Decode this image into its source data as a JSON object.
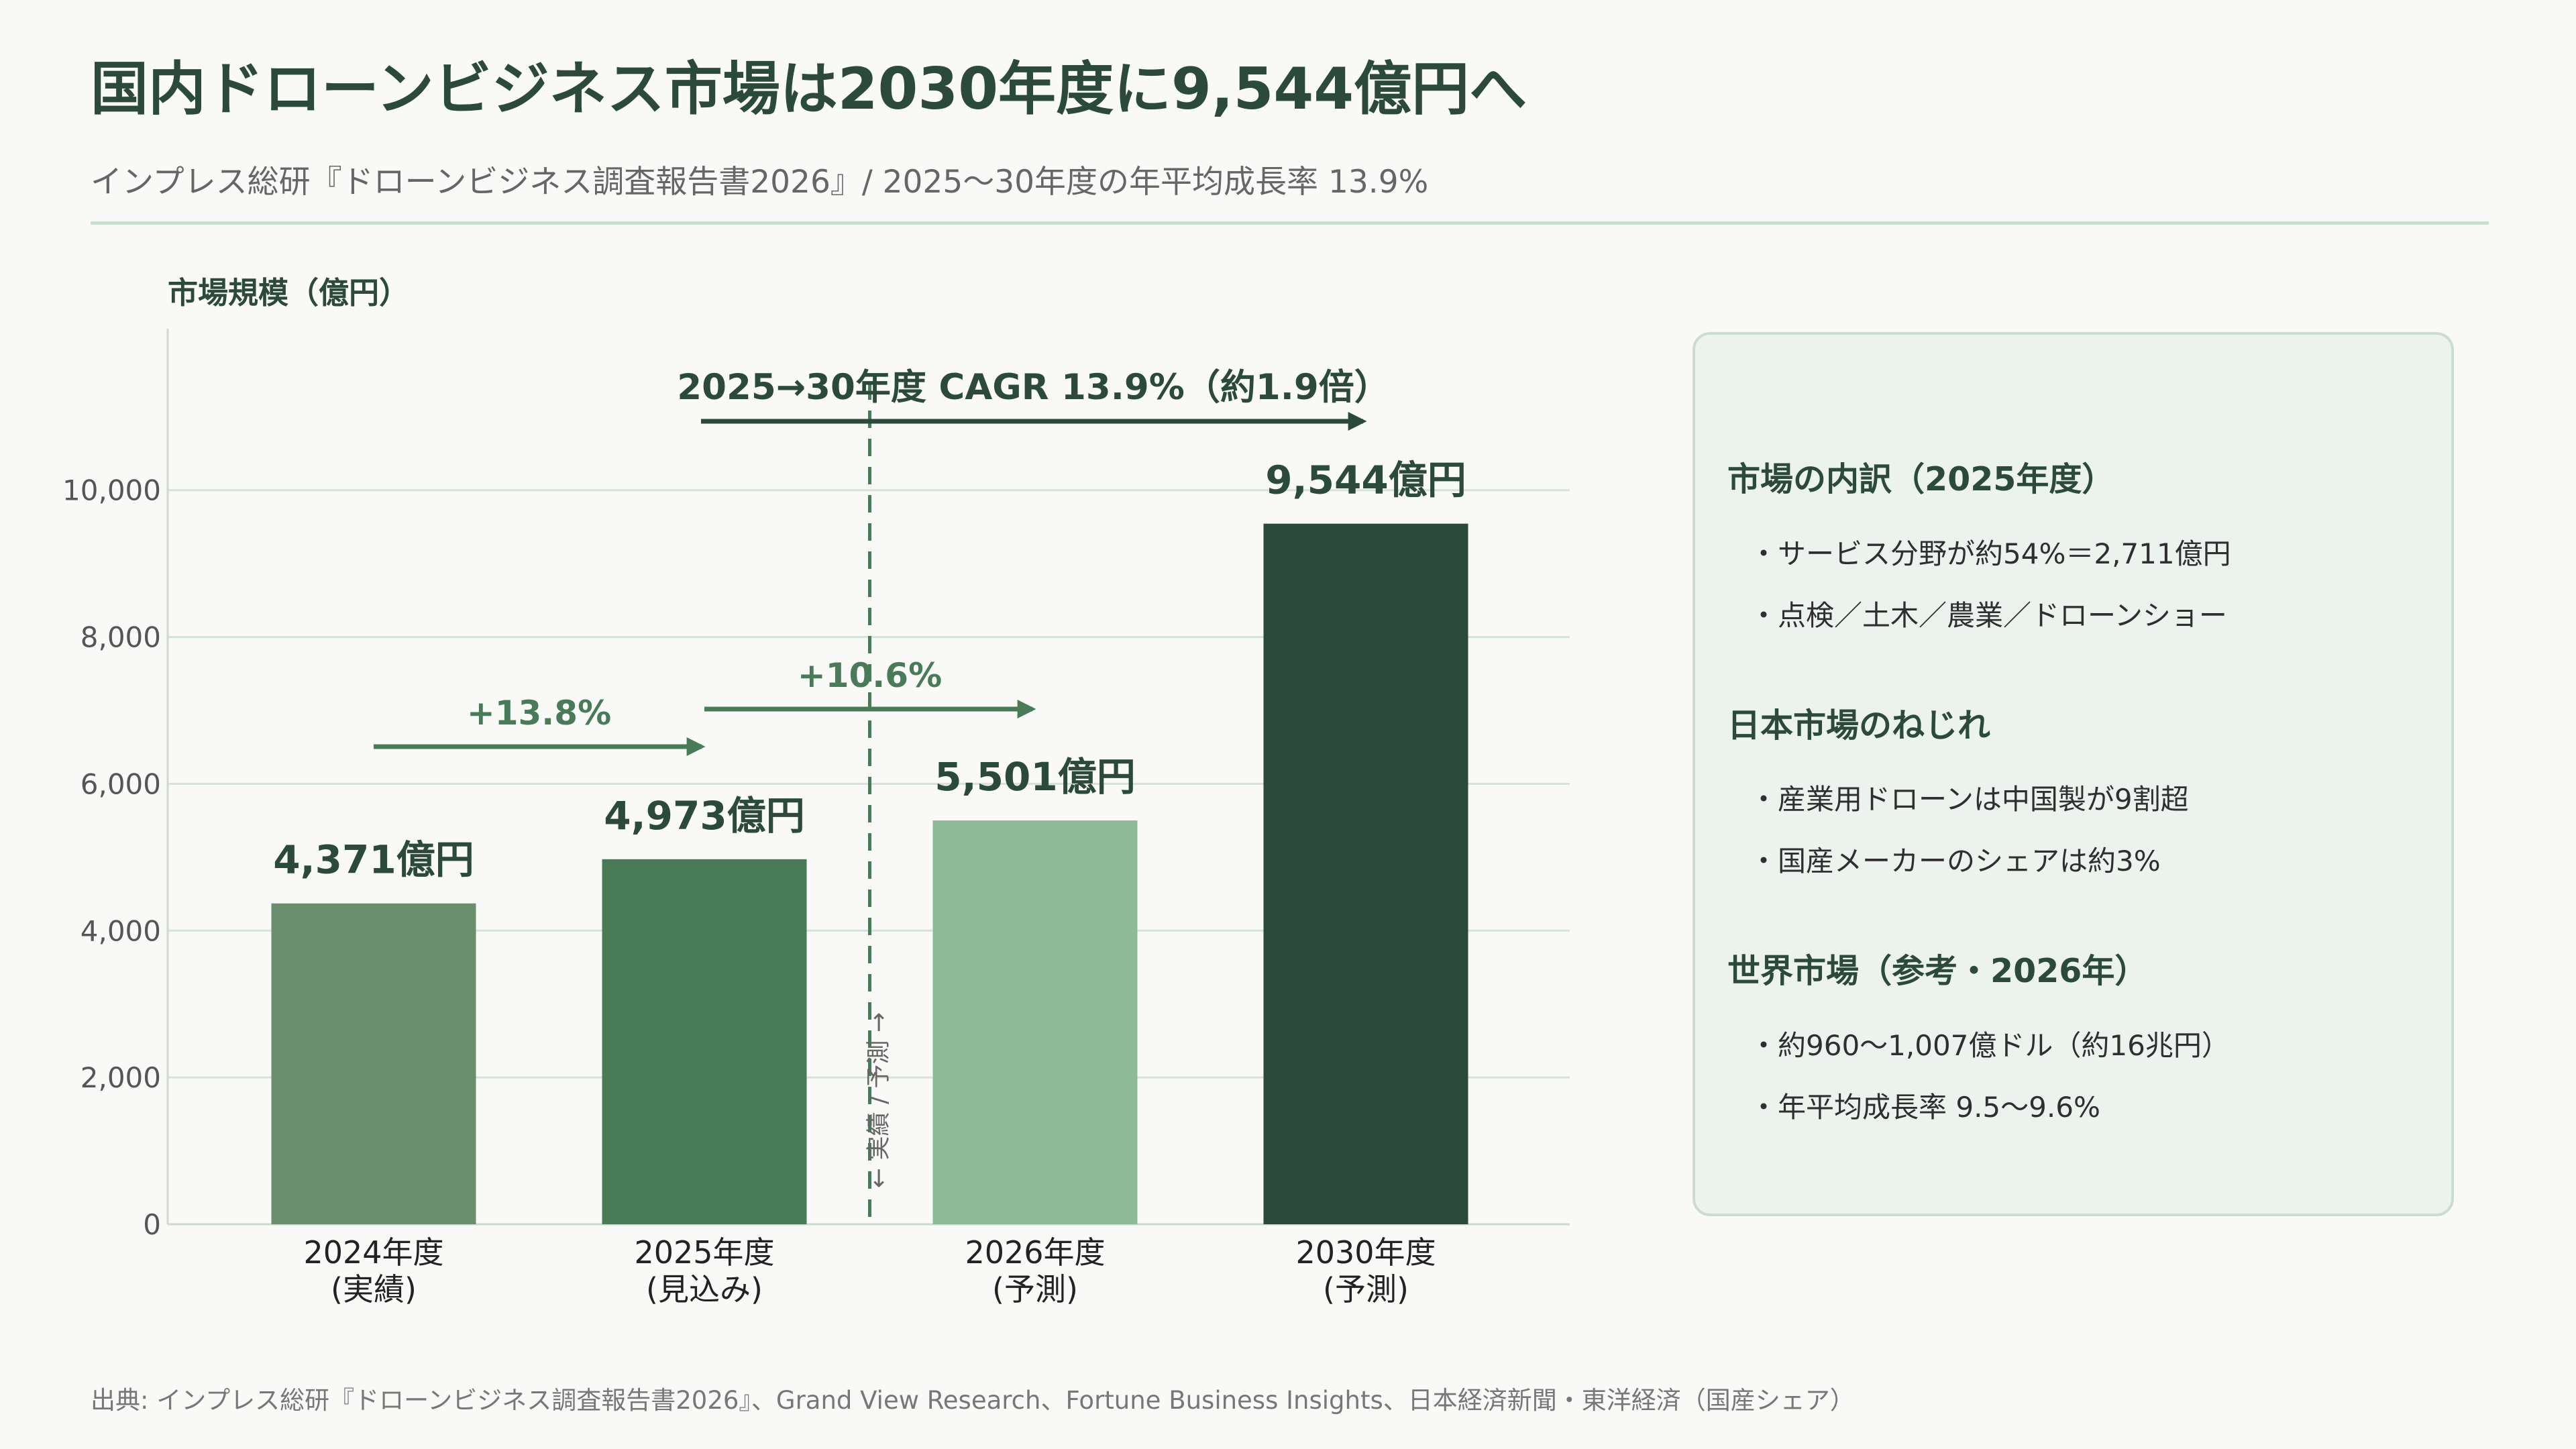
{
  "title": "国内ドローンビジネス市場は2030年度に9,544億円へ",
  "subtitle": "インプレス総研『ドローンビジネス調査報告書2026』/ 2025〜30年度の年平均成長率 13.9%",
  "chart_data": {
    "type": "bar",
    "ylabel": "市場規模（億円）",
    "categories": [
      [
        "2024年度",
        "(実績)"
      ],
      [
        "2025年度",
        "(見込み)"
      ],
      [
        "2026年度",
        "(予測)"
      ],
      [
        "2030年度",
        "(予測)"
      ]
    ],
    "values": [
      4371,
      4973,
      5501,
      9544
    ],
    "value_labels": [
      "4,371億円",
      "4,973億円",
      "5,501億円",
      "9,544億円"
    ],
    "bar_colors": [
      "#6b8e6f",
      "#4a7b59",
      "#8eba96",
      "#2c4a3c"
    ],
    "ylim": [
      0,
      12200
    ],
    "yticks": [
      0,
      2000,
      4000,
      6000,
      8000,
      10000
    ],
    "ytick_labels": [
      "0",
      "2,000",
      "4,000",
      "6,000",
      "8,000",
      "10,000"
    ],
    "grid": true,
    "annotations": {
      "growth": [
        {
          "text": "+13.8%",
          "from": 0,
          "to": 1
        },
        {
          "text": "+10.6%",
          "from": 1,
          "to": 2
        }
      ],
      "cagr": {
        "text": "2025→30年度  CAGR 13.9%（約1.9倍）",
        "from": 1.5,
        "to": 3
      },
      "divider": {
        "text": "← 実績 / 予測 →",
        "after": 1
      }
    }
  },
  "panel": {
    "sections": [
      {
        "heading": "市場の内訳（2025年度）",
        "items": [
          "・サービス分野が約54%＝2,711億円",
          "・点検／土木／農業／ドローンショー"
        ]
      },
      {
        "heading": "日本市場のねじれ",
        "items": [
          "・産業用ドローンは中国製が9割超",
          "・国産メーカーのシェアは約3%"
        ]
      },
      {
        "heading": "世界市場（参考・2026年）",
        "items": [
          "・約960〜1,007億ドル（約16兆円）",
          "・年平均成長率 9.5〜9.6%"
        ]
      }
    ]
  },
  "source": "出典: インプレス総研『ドローンビジネス調査報告書2026』、Grand View Research、Fortune Business Insights、日本経済新聞・東洋経済（国産シェア）",
  "colors": {
    "accent": "#2c4a3c",
    "arrow": "#4a7b59",
    "grid": "#d6e3d8"
  }
}
